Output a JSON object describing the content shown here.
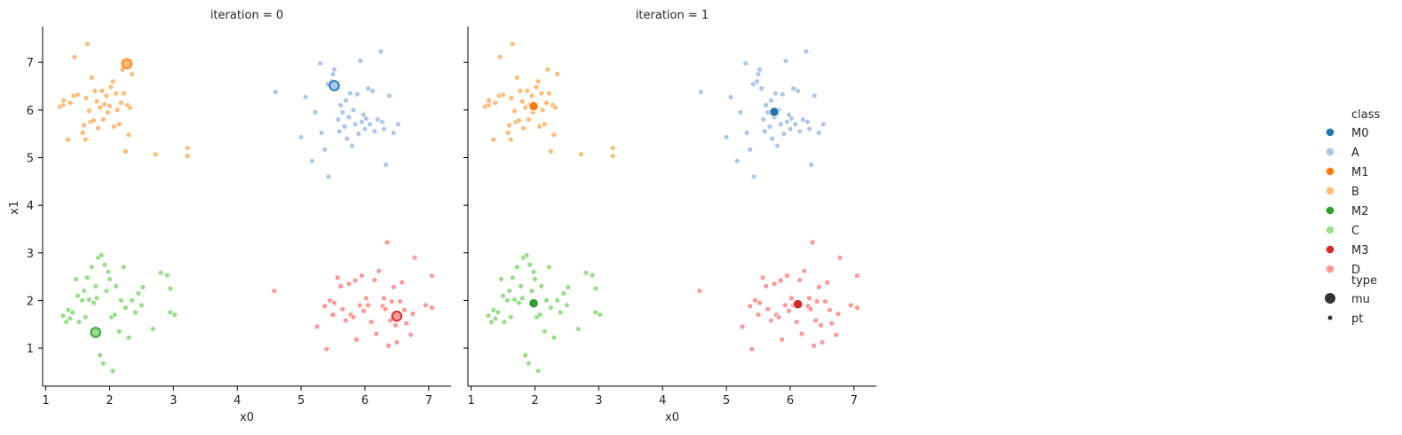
{
  "chart_data": {
    "type": "scatter",
    "facet_label": "iteration",
    "xlabel": "x0",
    "ylabel": "x1",
    "xlim": [
      0.95,
      7.35
    ],
    "ylim": [
      0.2,
      7.75
    ],
    "xticks": [
      1,
      2,
      3,
      4,
      5,
      6,
      7
    ],
    "yticks": [
      1,
      2,
      3,
      4,
      5,
      6,
      7
    ],
    "panels": [
      {
        "title": "iteration = 0",
        "centroids": [
          {
            "class": "M0",
            "x": 5.52,
            "y": 6.51
          },
          {
            "class": "M1",
            "x": 2.27,
            "y": 6.97
          },
          {
            "class": "M2",
            "x": 1.78,
            "y": 1.33
          },
          {
            "class": "M3",
            "x": 6.5,
            "y": 1.67
          }
        ]
      },
      {
        "title": "iteration = 1",
        "centroids": [
          {
            "class": "M0",
            "x": 5.75,
            "y": 5.96
          },
          {
            "class": "M1",
            "x": 1.98,
            "y": 6.08
          },
          {
            "class": "M2",
            "x": 1.98,
            "y": 1.94
          },
          {
            "class": "M3",
            "x": 6.12,
            "y": 1.92
          }
        ]
      }
    ],
    "points": {
      "A": [
        [
          4.6,
          6.38
        ],
        [
          5.0,
          5.43
        ],
        [
          5.07,
          6.27
        ],
        [
          5.17,
          4.93
        ],
        [
          5.22,
          5.95
        ],
        [
          5.3,
          6.98
        ],
        [
          5.32,
          5.52
        ],
        [
          5.37,
          5.17
        ],
        [
          5.42,
          6.54
        ],
        [
          5.43,
          4.6
        ],
        [
          5.48,
          6.6
        ],
        [
          5.5,
          6.75
        ],
        [
          5.52,
          6.85
        ],
        [
          5.55,
          6.45
        ],
        [
          5.58,
          5.8
        ],
        [
          5.6,
          5.55
        ],
        [
          5.62,
          6.1
        ],
        [
          5.65,
          5.95
        ],
        [
          5.68,
          5.65
        ],
        [
          5.7,
          6.2
        ],
        [
          5.72,
          5.4
        ],
        [
          5.75,
          5.85
        ],
        [
          5.77,
          6.35
        ],
        [
          5.8,
          5.25
        ],
        [
          5.82,
          6.0
        ],
        [
          5.85,
          5.7
        ],
        [
          5.88,
          6.33
        ],
        [
          5.9,
          5.5
        ],
        [
          5.93,
          7.03
        ],
        [
          5.95,
          5.75
        ],
        [
          5.98,
          5.9
        ],
        [
          6.0,
          5.6
        ],
        [
          6.02,
          5.82
        ],
        [
          6.05,
          6.45
        ],
        [
          6.08,
          5.7
        ],
        [
          6.12,
          6.4
        ],
        [
          6.15,
          5.55
        ],
        [
          6.2,
          5.8
        ],
        [
          6.25,
          7.23
        ],
        [
          6.27,
          5.75
        ],
        [
          6.3,
          5.6
        ],
        [
          6.33,
          4.85
        ],
        [
          6.38,
          6.3
        ],
        [
          6.45,
          5.52
        ],
        [
          6.52,
          5.7
        ]
      ],
      "B": [
        [
          1.22,
          6.07
        ],
        [
          1.27,
          6.1
        ],
        [
          1.28,
          6.2
        ],
        [
          1.35,
          5.38
        ],
        [
          1.38,
          6.15
        ],
        [
          1.44,
          6.3
        ],
        [
          1.45,
          7.11
        ],
        [
          1.5,
          6.32
        ],
        [
          1.58,
          5.52
        ],
        [
          1.6,
          5.68
        ],
        [
          1.62,
          5.38
        ],
        [
          1.63,
          6.25
        ],
        [
          1.65,
          7.38
        ],
        [
          1.68,
          5.98
        ],
        [
          1.7,
          5.75
        ],
        [
          1.72,
          6.68
        ],
        [
          1.75,
          5.78
        ],
        [
          1.77,
          6.4
        ],
        [
          1.8,
          6.18
        ],
        [
          1.82,
          5.62
        ],
        [
          1.85,
          6.05
        ],
        [
          1.88,
          6.4
        ],
        [
          1.9,
          5.8
        ],
        [
          1.92,
          6.12
        ],
        [
          1.95,
          6.3
        ],
        [
          1.97,
          5.95
        ],
        [
          2.0,
          6.08
        ],
        [
          2.02,
          6.48
        ],
        [
          2.05,
          6.6
        ],
        [
          2.07,
          5.65
        ],
        [
          2.1,
          6.35
        ],
        [
          2.12,
          6.0
        ],
        [
          2.15,
          5.7
        ],
        [
          2.18,
          6.15
        ],
        [
          2.2,
          6.85
        ],
        [
          2.22,
          6.35
        ],
        [
          2.25,
          5.13
        ],
        [
          2.28,
          6.1
        ],
        [
          2.3,
          5.48
        ],
        [
          2.32,
          6.05
        ],
        [
          2.35,
          6.75
        ],
        [
          2.72,
          5.07
        ],
        [
          3.22,
          5.2
        ],
        [
          3.22,
          5.03
        ]
      ],
      "C": [
        [
          1.27,
          1.68
        ],
        [
          1.32,
          1.55
        ],
        [
          1.35,
          1.8
        ],
        [
          1.38,
          1.62
        ],
        [
          1.42,
          1.75
        ],
        [
          1.47,
          2.45
        ],
        [
          1.5,
          2.1
        ],
        [
          1.52,
          1.55
        ],
        [
          1.57,
          2.0
        ],
        [
          1.6,
          2.2
        ],
        [
          1.62,
          1.65
        ],
        [
          1.65,
          2.48
        ],
        [
          1.68,
          2.02
        ],
        [
          1.72,
          2.7
        ],
        [
          1.75,
          1.95
        ],
        [
          1.78,
          2.3
        ],
        [
          1.8,
          2.05
        ],
        [
          1.82,
          2.9
        ],
        [
          1.85,
          0.85
        ],
        [
          1.87,
          2.95
        ],
        [
          1.9,
          0.68
        ],
        [
          1.92,
          2.75
        ],
        [
          1.95,
          2.2
        ],
        [
          1.98,
          2.6
        ],
        [
          2.0,
          2.45
        ],
        [
          2.03,
          1.65
        ],
        [
          2.05,
          0.52
        ],
        [
          2.08,
          1.7
        ],
        [
          2.1,
          2.3
        ],
        [
          2.15,
          1.35
        ],
        [
          2.18,
          2.0
        ],
        [
          2.22,
          2.7
        ],
        [
          2.25,
          1.85
        ],
        [
          2.3,
          1.22
        ],
        [
          2.35,
          2.0
        ],
        [
          2.4,
          1.75
        ],
        [
          2.45,
          2.15
        ],
        [
          2.52,
          2.28
        ],
        [
          2.5,
          1.9
        ],
        [
          2.68,
          1.4
        ],
        [
          2.8,
          2.58
        ],
        [
          2.9,
          2.53
        ],
        [
          2.95,
          2.25
        ],
        [
          2.95,
          1.75
        ],
        [
          3.02,
          1.7
        ]
      ],
      "D": [
        [
          4.58,
          2.2
        ],
        [
          5.25,
          1.45
        ],
        [
          5.37,
          1.88
        ],
        [
          5.4,
          0.98
        ],
        [
          5.45,
          2.0
        ],
        [
          5.5,
          1.7
        ],
        [
          5.52,
          1.95
        ],
        [
          5.57,
          2.48
        ],
        [
          5.62,
          2.3
        ],
        [
          5.65,
          1.82
        ],
        [
          5.7,
          1.58
        ],
        [
          5.75,
          2.35
        ],
        [
          5.78,
          1.7
        ],
        [
          5.82,
          1.65
        ],
        [
          5.85,
          2.42
        ],
        [
          5.87,
          1.18
        ],
        [
          5.92,
          1.9
        ],
        [
          5.95,
          2.52
        ],
        [
          5.98,
          1.78
        ],
        [
          6.02,
          2.05
        ],
        [
          6.05,
          1.9
        ],
        [
          6.1,
          1.55
        ],
        [
          6.15,
          2.43
        ],
        [
          6.18,
          1.3
        ],
        [
          6.22,
          2.62
        ],
        [
          6.28,
          1.88
        ],
        [
          6.3,
          2.05
        ],
        [
          6.35,
          3.22
        ],
        [
          6.37,
          1.05
        ],
        [
          6.4,
          1.58
        ],
        [
          6.42,
          1.98
        ],
        [
          6.45,
          2.28
        ],
        [
          6.48,
          1.48
        ],
        [
          6.5,
          1.12
        ],
        [
          6.55,
          1.98
        ],
        [
          6.58,
          2.38
        ],
        [
          6.62,
          1.8
        ],
        [
          6.65,
          1.52
        ],
        [
          6.72,
          1.28
        ],
        [
          6.75,
          1.72
        ],
        [
          6.78,
          2.9
        ],
        [
          6.95,
          1.9
        ],
        [
          7.05,
          2.52
        ],
        [
          7.05,
          1.85
        ],
        [
          6.32,
          1.82
        ]
      ]
    },
    "legend": {
      "class_title": "class",
      "classes": [
        "M0",
        "A",
        "M1",
        "B",
        "M2",
        "C",
        "M3",
        "D"
      ],
      "type_title": "type",
      "types": [
        "mu",
        "pt"
      ]
    },
    "colors": {
      "M0": "#1f77b4",
      "A": "#aec7e8",
      "M1": "#ff7f0e",
      "B": "#ffbb78",
      "M2": "#2ca02c",
      "C": "#98df8a",
      "M3": "#d62728",
      "D": "#ff9896"
    },
    "centroid_fill_iter0": {
      "M0": "#aec7e8",
      "M1": "#ffbb78",
      "M2": "#98df8a",
      "M3": "#ff9896"
    }
  }
}
